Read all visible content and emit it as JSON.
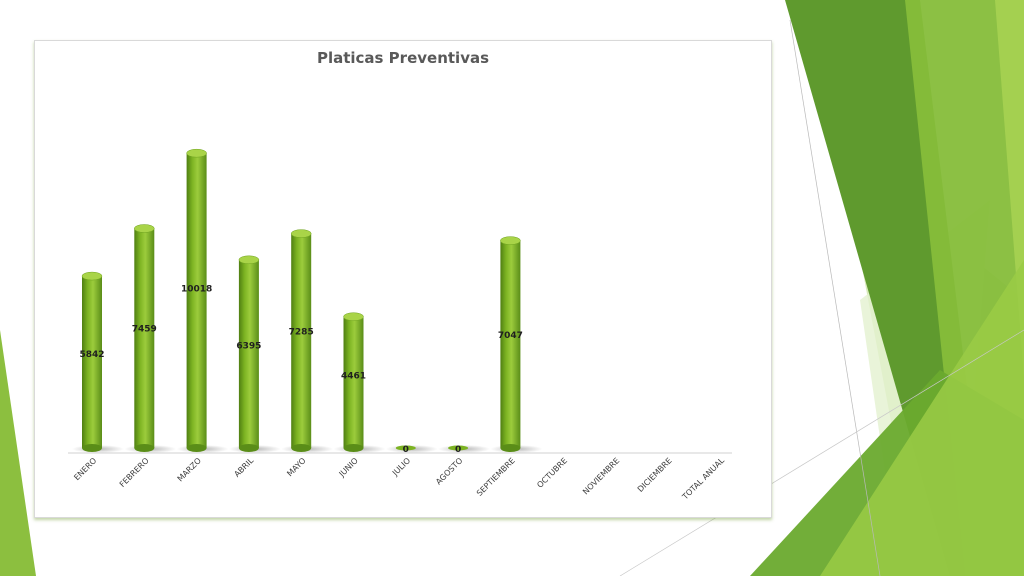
{
  "chart_data": {
    "type": "bar",
    "title": "Platicas Preventivas",
    "categories": [
      "ENERO",
      "FEBRERO",
      "MARZO",
      "ABRIL",
      "MAYO",
      "JUNIO",
      "JULIO",
      "AGOSTO",
      "SEPTIEMBRE",
      "OCTUBRE",
      "NOVIEMBRE",
      "DICIEMBRE",
      "TOTAL ANUAL"
    ],
    "values": [
      5842,
      7459,
      10018,
      6395,
      7285,
      4461,
      0,
      0,
      7047,
      null,
      null,
      null,
      null
    ],
    "data_labels": [
      "5842",
      "7459",
      "10018",
      "6395",
      "7285",
      "4461",
      "0",
      "0",
      "7047",
      "",
      "",
      "",
      ""
    ],
    "xlabel": "",
    "ylabel": "",
    "ylim": [
      0,
      10500
    ],
    "grid": false,
    "legend": "none",
    "bar_style": "3d-cylinder"
  },
  "colors": {
    "bar_light": "#9ccc3c",
    "bar_mid": "#7cb322",
    "bar_dark": "#4f7f12",
    "bar_top": "#a9d448",
    "accent_dark": "#5f8f2a",
    "accent_mid": "#8cbf3f",
    "accent_light": "#cde6a2"
  }
}
